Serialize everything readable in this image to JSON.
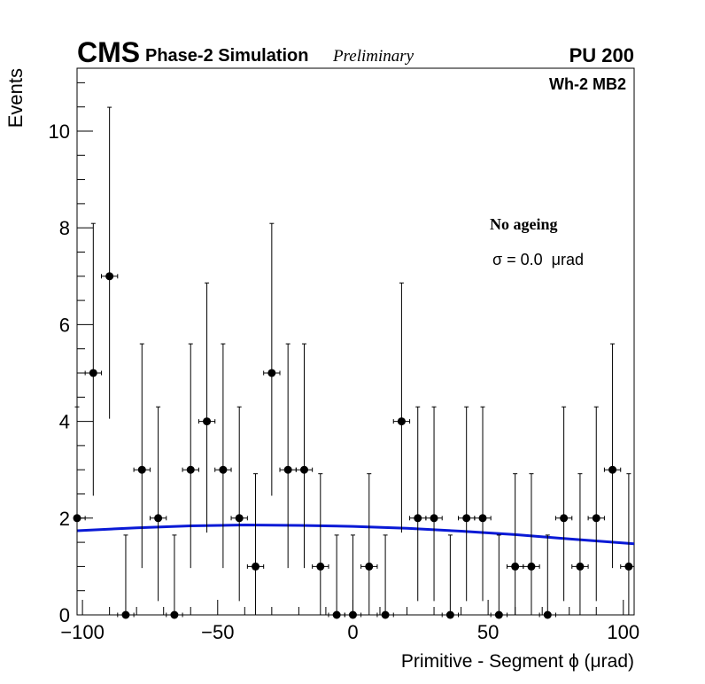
{
  "header": {
    "experiment": "CMS",
    "subtitle": "Phase-2 Simulation",
    "status": "Preliminary",
    "pileup": "PU 200"
  },
  "chart_data": {
    "type": "scatter",
    "title": "",
    "xlabel": "Primitive - Segment ϕ (μrad)",
    "ylabel": "Events",
    "xlim": [
      -102,
      104
    ],
    "ylim": [
      0,
      11.3
    ],
    "xticks": [
      -100,
      -50,
      0,
      50,
      100
    ],
    "xtick_labels": [
      "−100",
      "−50",
      "0",
      "50",
      "100"
    ],
    "yticks": [
      0,
      2,
      4,
      6,
      8,
      10
    ],
    "ytick_labels": [
      "0",
      "2",
      "4",
      "6",
      "8",
      "10"
    ],
    "bin_width": 6,
    "legend_position": "none",
    "annotations": {
      "region": "Wh-2 MB2",
      "condition": "No ageing",
      "sigma": "σ = 0.0  μrad"
    },
    "series": [
      {
        "kind": "points-with-errors",
        "color": "#000000",
        "x": [
          -102,
          -96,
          -90,
          -84,
          -78,
          -72,
          -66,
          -60,
          -54,
          -48,
          -42,
          -36,
          -30,
          -24,
          -18,
          -12,
          -6,
          0,
          6,
          12,
          18,
          24,
          30,
          36,
          42,
          48,
          54,
          60,
          66,
          72,
          78,
          84,
          90,
          96,
          102
        ],
        "y": [
          2,
          5,
          7,
          0,
          3,
          2,
          0,
          3,
          4,
          3,
          2,
          1,
          5,
          3,
          3,
          1,
          0,
          0,
          1,
          0,
          4,
          2,
          2,
          0,
          2,
          2,
          0,
          1,
          1,
          0,
          2,
          1,
          2,
          3,
          1
        ]
      },
      {
        "kind": "fit-curve",
        "color": "#0a1ad6",
        "x": [
          -102,
          -80,
          -60,
          -40,
          -20,
          0,
          20,
          40,
          60,
          80,
          104
        ],
        "y": [
          1.74,
          1.8,
          1.84,
          1.86,
          1.85,
          1.83,
          1.79,
          1.73,
          1.66,
          1.57,
          1.47
        ]
      }
    ]
  }
}
